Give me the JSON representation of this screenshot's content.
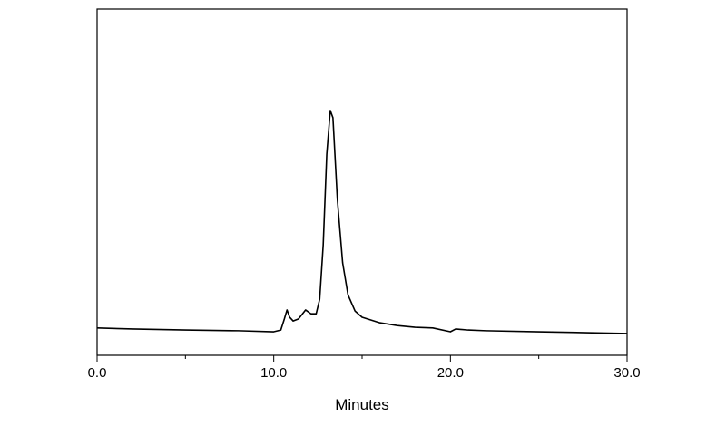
{
  "chart_data": {
    "type": "line",
    "x_label": "Minutes",
    "x": [
      0,
      2,
      5,
      8,
      10,
      10.4,
      10.6,
      10.75,
      10.9,
      11.1,
      11.4,
      11.8,
      12.1,
      12.4,
      12.6,
      12.8,
      13.0,
      13.2,
      13.35,
      13.6,
      13.9,
      14.2,
      14.6,
      15.0,
      16.0,
      17.0,
      18.0,
      19.0,
      20.0,
      20.3,
      21.0,
      22.0,
      25.0,
      28.0,
      30.0
    ],
    "series": [
      {
        "color": "#000000",
        "values": [
          7.9,
          7.6,
          7.3,
          7.1,
          6.8,
          7.3,
          10.5,
          13.1,
          11.0,
          9.9,
          10.5,
          13.1,
          12.0,
          12.0,
          16.2,
          31.9,
          58.1,
          70.7,
          68.6,
          45.0,
          26.7,
          17.5,
          12.8,
          11.0,
          9.4,
          8.6,
          8.1,
          7.9,
          6.8,
          7.6,
          7.3,
          7.1,
          6.8,
          6.5,
          6.3
        ]
      }
    ],
    "xlim": [
      0,
      30
    ],
    "ylim": [
      0,
      100
    ],
    "xticks": [
      {
        "value": 0,
        "label": "0.0"
      },
      {
        "value": 10,
        "label": "10.0"
      },
      {
        "value": 20,
        "label": "20.0"
      },
      {
        "value": 30,
        "label": "30.0"
      }
    ],
    "minor_xticks": [
      5,
      15,
      25
    ]
  }
}
